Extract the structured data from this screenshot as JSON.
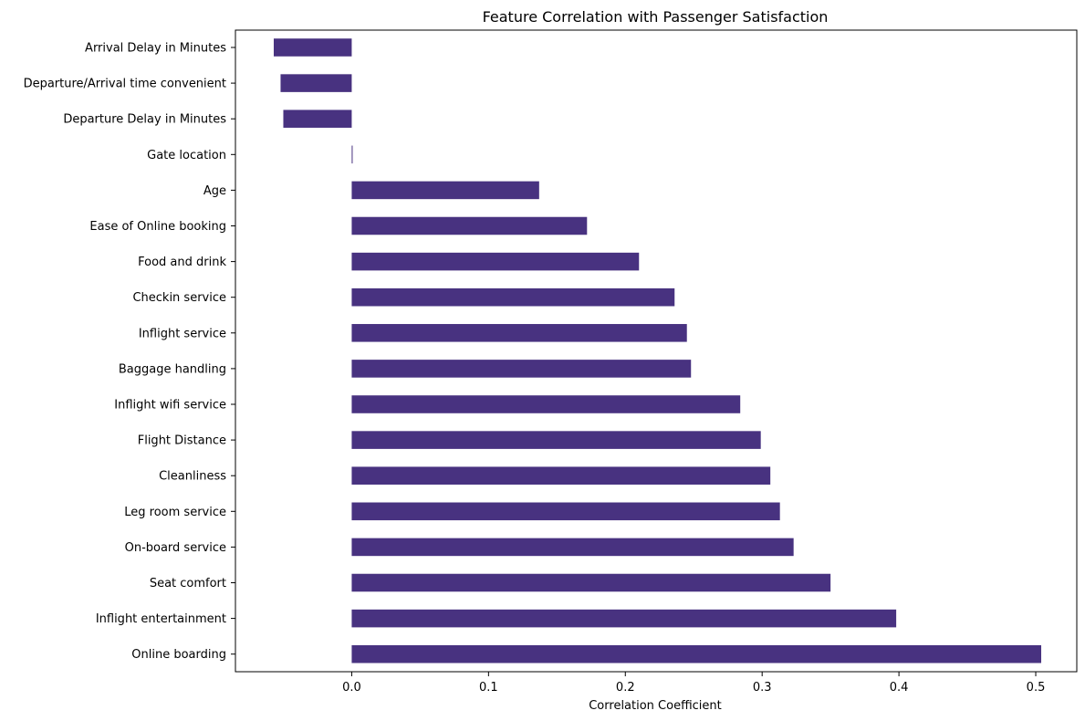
{
  "chart_data": {
    "type": "bar",
    "orientation": "horizontal",
    "title": "Feature Correlation with Passenger Satisfaction",
    "xlabel": "Correlation Coefficient",
    "ylabel": "",
    "categories": [
      "Arrival Delay in Minutes",
      "Departure/Arrival time convenient",
      "Departure Delay in Minutes",
      "Gate location",
      "Age",
      "Ease of Online booking",
      "Food and drink",
      "Checkin service",
      "Inflight service",
      "Baggage handling",
      "Inflight wifi service",
      "Flight Distance",
      "Cleanliness",
      "Leg room service",
      "On-board service",
      "Seat comfort",
      "Inflight entertainment",
      "Online boarding"
    ],
    "values": [
      -0.057,
      -0.052,
      -0.05,
      0.0005,
      0.137,
      0.172,
      0.21,
      0.236,
      0.245,
      0.248,
      0.284,
      0.299,
      0.306,
      0.313,
      0.323,
      0.35,
      0.398,
      0.504
    ],
    "xlim": [
      -0.085,
      0.53
    ],
    "xticks": [
      0.0,
      0.1,
      0.2,
      0.3,
      0.4,
      0.5
    ],
    "xtick_labels": [
      "0.0",
      "0.1",
      "0.2",
      "0.3",
      "0.4",
      "0.5"
    ],
    "grid": false,
    "legend": "none",
    "bar_color": "#483280"
  }
}
